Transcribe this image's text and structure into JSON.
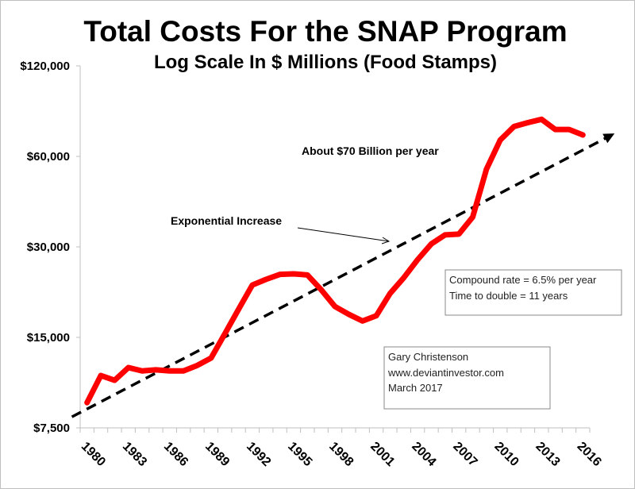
{
  "chart_data": {
    "type": "line",
    "title": "Total Costs For the SNAP Program",
    "subtitle": "Log Scale In $ Millions (Food Stamps)",
    "xlabel": "",
    "ylabel": "",
    "y_scale": "log2",
    "ylim": [
      7500,
      120000
    ],
    "y_ticks": [
      7500,
      15000,
      30000,
      60000,
      120000
    ],
    "y_tick_labels": [
      "$7,500",
      "$15,000",
      "$30,000",
      "$60,000",
      "$120,000"
    ],
    "x_tick_labels": [
      "1980",
      "1983",
      "1986",
      "1989",
      "1992",
      "1995",
      "1998",
      "2001",
      "2004",
      "2007",
      "2010",
      "2013",
      "2016"
    ],
    "grid": false,
    "series": [
      {
        "name": "SNAP total cost",
        "color": "#ff0000",
        "x": [
          1980,
          1981,
          1982,
          1983,
          1984,
          1985,
          1986,
          1987,
          1988,
          1989,
          1990,
          1991,
          1992,
          1993,
          1994,
          1995,
          1996,
          1997,
          1998,
          1999,
          2000,
          2001,
          2002,
          2003,
          2004,
          2005,
          2006,
          2007,
          2008,
          2009,
          2010,
          2011,
          2012,
          2013,
          2014,
          2015,
          2016
        ],
        "values": [
          9100,
          11200,
          10800,
          11900,
          11600,
          11700,
          11600,
          11600,
          12100,
          12800,
          15400,
          18600,
          22400,
          23400,
          24300,
          24400,
          24200,
          21600,
          19000,
          17900,
          17000,
          17700,
          21000,
          23700,
          27200,
          30700,
          32900,
          33100,
          37700,
          54400,
          68000,
          75400,
          77700,
          79700,
          73700,
          73700,
          70700
        ]
      }
    ],
    "trend_line": {
      "name": "Exponential Increase",
      "color": "#000000",
      "style": "dashed-arrow",
      "x": [
        1978.9,
        2018.3
      ],
      "values": [
        8160,
        71500
      ]
    },
    "annotations": {
      "level": "About $70 Billion per year",
      "trend": "Exponential Increase",
      "rate_box": [
        "Compound rate = 6.5% per year",
        "Time to double = 11 years"
      ],
      "author_box": [
        "Gary Christenson",
        "www.deviantinvestor.com",
        "March 2017"
      ]
    }
  }
}
